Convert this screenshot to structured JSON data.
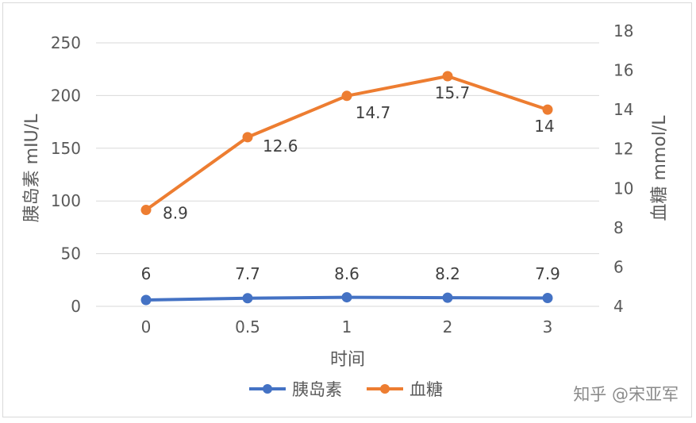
{
  "chart_data": {
    "type": "line",
    "categories": [
      "0",
      "0.5",
      "1",
      "2",
      "3"
    ],
    "xlabel": "时间",
    "y_left": {
      "label": "胰岛素 mIU/L",
      "min": 0,
      "max": 250,
      "ticks": [
        0,
        50,
        100,
        150,
        200,
        250
      ]
    },
    "y_right": {
      "label": "血糖 mmol/L",
      "min": 4,
      "max": 18,
      "ticks": [
        4,
        6,
        8,
        10,
        12,
        14,
        16,
        18
      ]
    },
    "grid": true,
    "legend": "bottom",
    "series": [
      {
        "name": "胰岛素",
        "axis": "left",
        "color": "#4472C4",
        "values": [
          6,
          7.7,
          8.6,
          8.2,
          7.9
        ],
        "labels": [
          "6",
          "7.7",
          "8.6",
          "8.2",
          "7.9"
        ]
      },
      {
        "name": "血糖",
        "axis": "right",
        "color": "#ED7D31",
        "values": [
          8.9,
          12.6,
          14.7,
          15.7,
          14
        ],
        "labels": [
          "8.9",
          "12.6",
          "14.7",
          "15.7",
          "14"
        ]
      }
    ]
  },
  "watermark": "知乎 @宋亚军"
}
